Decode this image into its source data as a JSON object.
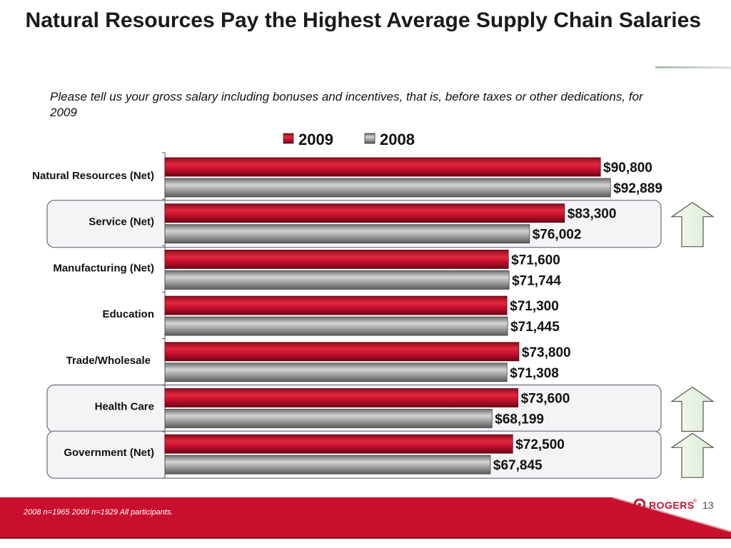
{
  "slide": {
    "title": "Natural Resources Pay the Highest Average Supply Chain Salaries",
    "subtitle": " Please tell us your gross salary including bonuses and incentives, that is, before taxes or other dedications, for 2009",
    "footnote": "2008 n=1965  2009 n=1929 All participants.",
    "page_number": "13",
    "logo_text": "ROGERS",
    "logo_reg": "®"
  },
  "colors": {
    "series_2009": "#c8102e",
    "series_2008": "#8f8f8f",
    "footer": "#c8102e",
    "arrow": "#e8f3e3"
  },
  "chart_data": {
    "type": "bar",
    "orientation": "horizontal",
    "categories": [
      "Natural Resources (Net)",
      "Service (Net)",
      "Manufacturing (Net)",
      "Education",
      "Trade/Wholesale",
      "Health Care",
      "Government (Net)"
    ],
    "series": [
      {
        "name": "2009",
        "values": [
          90800,
          83300,
          71600,
          71300,
          73800,
          73600,
          72500
        ],
        "labels": [
          "$90,800",
          "$83,300",
          "$71,600",
          "$71,300",
          "$73,800",
          "$73,600",
          "$72,500"
        ],
        "color": "#c8102e"
      },
      {
        "name": "2008",
        "values": [
          92889,
          76002,
          71744,
          71445,
          71308,
          68199,
          67845
        ],
        "labels": [
          "$92,889",
          "$76,002",
          "$71,744",
          "$71,445",
          "$71,308",
          "$68,199",
          "$67,845"
        ],
        "color": "#8f8f8f"
      }
    ],
    "xlim": [
      0,
      100000
    ],
    "legend_position": "top",
    "highlighted_categories": [
      "Service (Net)",
      "Health Care",
      "Government (Net)"
    ],
    "grid": false
  }
}
